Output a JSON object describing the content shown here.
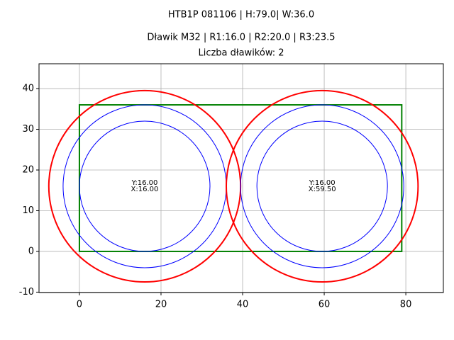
{
  "chart_data": {
    "type": "circles",
    "title": "HTB1P 081106 | H:79.0| W:36.0",
    "subtitle": "Dławik M32 | R1:16.0 | R2:20.0 | R3:23.5",
    "subtitle2": "Liczba dławików: 2",
    "xlim": [
      -9.9,
      89.2
    ],
    "ylim": [
      -10.1,
      46.1
    ],
    "xticks": [
      0,
      20,
      40,
      60,
      80
    ],
    "yticks": [
      -10,
      0,
      10,
      20,
      30,
      40
    ],
    "grid": true,
    "rectangle": {
      "x": [
        0,
        79
      ],
      "y": [
        0,
        36
      ],
      "color": "green",
      "linewidth": 2
    },
    "radii": [
      {
        "value": 16,
        "color": "blue",
        "linewidth": 1
      },
      {
        "value": 20,
        "color": "blue",
        "linewidth": 1
      },
      {
        "value": 23.5,
        "color": "red",
        "linewidth": 2
      }
    ],
    "circles": [
      {
        "x": 16,
        "y": 16,
        "label_y": "Y:16.00",
        "label_x": "X:16.00"
      },
      {
        "x": 59.5,
        "y": 16,
        "label_y": "Y:16.00",
        "label_x": "X:59.50"
      }
    ]
  }
}
